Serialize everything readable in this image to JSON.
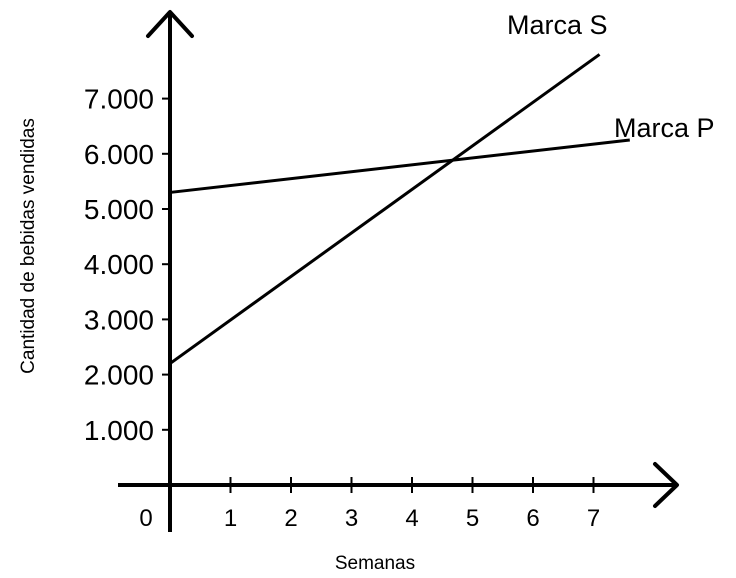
{
  "chart_data": {
    "type": "line",
    "title": "",
    "xlabel": "Semanas",
    "ylabel": "Cantidad de bebidas vendidas",
    "origin_label": "0",
    "x_ticks": [
      "1",
      "2",
      "3",
      "4",
      "5",
      "6",
      "7"
    ],
    "y_ticks": [
      "1.000",
      "2.000",
      "3.000",
      "4.000",
      "5.000",
      "6.000",
      "7.000"
    ],
    "xlim": [
      0,
      7.8
    ],
    "ylim": [
      0,
      7000
    ],
    "grid": false,
    "series": [
      {
        "name": "Marca S",
        "x": [
          0,
          7.1
        ],
        "y": [
          2200,
          7800
        ]
      },
      {
        "name": "Marca P",
        "x": [
          0,
          7.6
        ],
        "y": [
          5300,
          6250
        ]
      }
    ]
  }
}
